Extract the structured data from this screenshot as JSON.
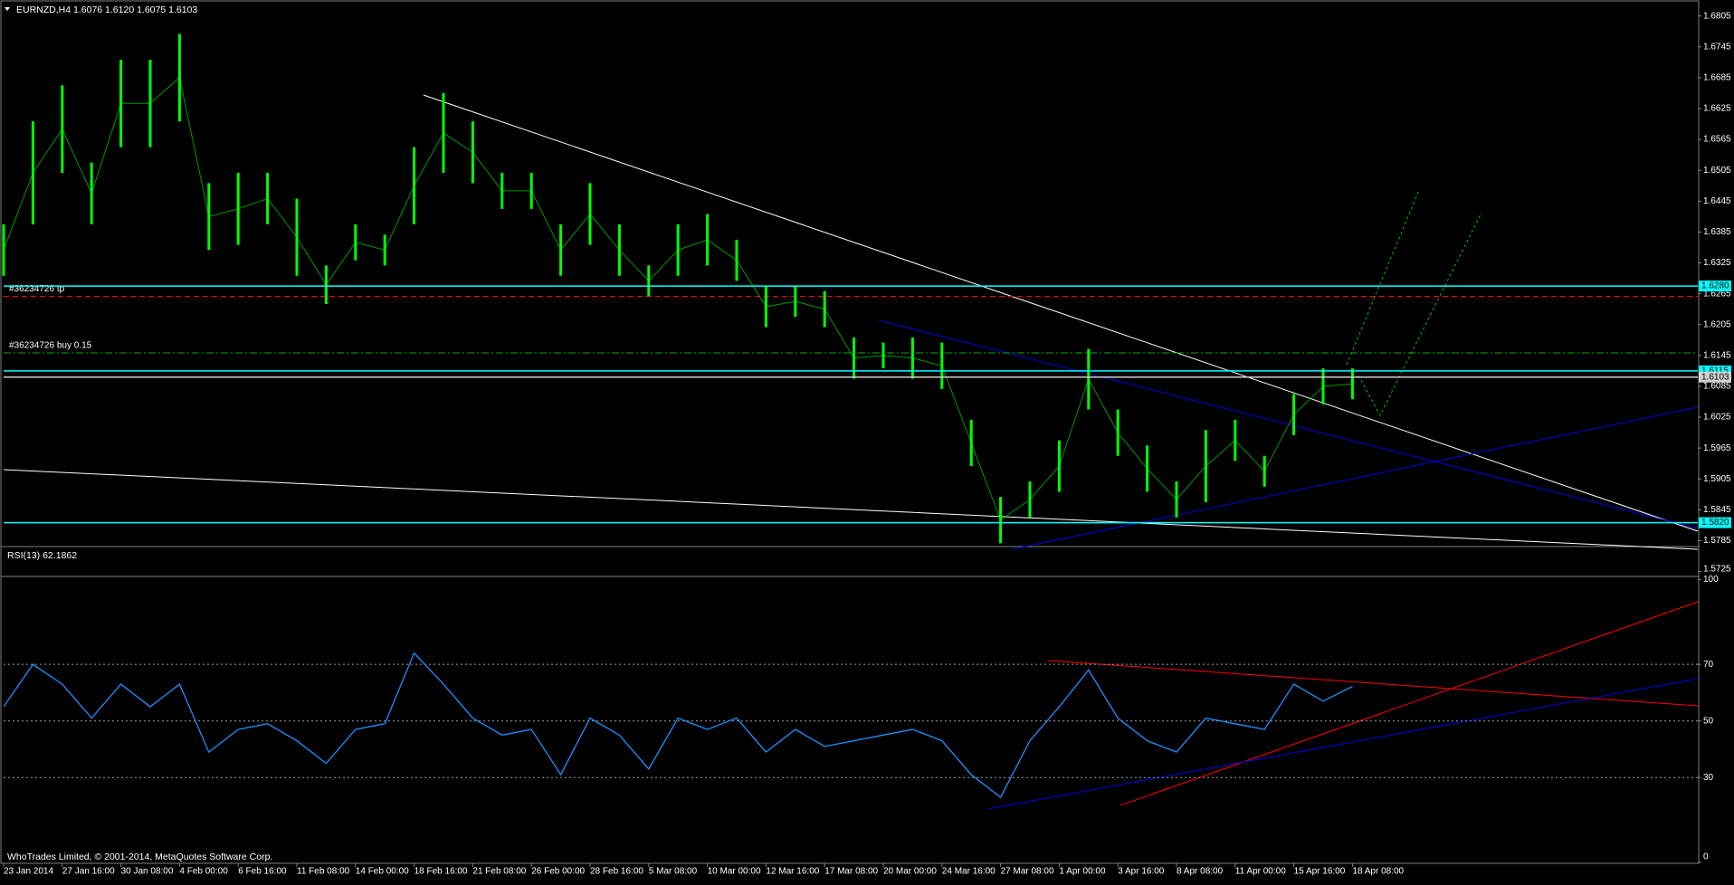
{
  "chart_data": [
    {
      "type": "hl-bar",
      "title": "EURNZD,H4  1.6076 1.6120 1.6075 1.6103",
      "color": "#00ff00",
      "categories": [
        "23 Jan 2014",
        null,
        "27 Jan 16:00",
        null,
        "30 Jan 08:00",
        null,
        "4 Feb 00:00",
        null,
        "6 Feb 16:00",
        null,
        "11 Feb 08:00",
        null,
        "14 Feb 00:00",
        null,
        "18 Feb 16:00",
        null,
        "21 Feb 08:00",
        null,
        "26 Feb 00:00",
        null,
        "28 Feb 16:00",
        null,
        "5 Mar 08:00",
        null,
        "10 Mar 00:00",
        null,
        "12 Mar 16:00",
        null,
        "17 Mar 08:00",
        null,
        "20 Mar 00:00",
        null,
        "24 Mar 16:00",
        null,
        "27 Mar 08:00",
        null,
        "1 Apr 00:00",
        null,
        "3 Apr 16:00",
        null,
        "8 Apr 08:00",
        null,
        "11 Apr 00:00",
        null,
        "15 Apr 16:00",
        null,
        "18 Apr 08:00"
      ],
      "highs": [
        1.64,
        1.66,
        1.667,
        1.652,
        1.672,
        1.672,
        1.677,
        1.648,
        1.65,
        1.65,
        1.645,
        1.632,
        1.64,
        1.638,
        1.655,
        1.6655,
        1.66,
        1.65,
        1.65,
        1.64,
        1.648,
        1.64,
        1.632,
        1.64,
        1.642,
        1.637,
        1.628,
        1.628,
        1.627,
        1.618,
        1.617,
        1.618,
        1.617,
        1.602,
        1.587,
        1.59,
        1.598,
        1.6158,
        1.604,
        1.597,
        1.59,
        1.6,
        1.602,
        1.595,
        1.607,
        1.612,
        1.612
      ],
      "lows": [
        1.63,
        1.64,
        1.65,
        1.64,
        1.655,
        1.655,
        1.66,
        1.635,
        1.636,
        1.64,
        1.63,
        1.6245,
        1.633,
        1.632,
        1.64,
        1.65,
        1.648,
        1.643,
        1.643,
        1.63,
        1.636,
        1.63,
        1.626,
        1.63,
        1.632,
        1.629,
        1.62,
        1.622,
        1.62,
        1.61,
        1.612,
        1.61,
        1.608,
        1.593,
        1.578,
        1.583,
        1.588,
        1.604,
        1.595,
        1.588,
        1.583,
        1.586,
        1.594,
        1.589,
        1.599,
        1.605,
        1.606
      ],
      "ylim": [
        1.5719,
        1.6829
      ],
      "yticks": [
        1.6805,
        1.6745,
        1.6685,
        1.6625,
        1.6565,
        1.6505,
        1.6445,
        1.6385,
        1.6325,
        1.6265,
        1.6205,
        1.6145,
        1.6085,
        1.6025,
        1.5965,
        1.5905,
        1.5845,
        1.5785,
        1.5725
      ],
      "price_lines": [
        {
          "value": 1.628,
          "label": "1.6280",
          "color": "#00ffff"
        },
        {
          "value": 1.6115,
          "label": "1.6115",
          "color": "#00ffff"
        },
        {
          "value": 1.6103,
          "label": "1.6103",
          "color": "#d0d0d0"
        },
        {
          "value": 1.582,
          "label": "1.5820",
          "color": "#00ffff"
        }
      ],
      "orders": [
        {
          "text": "#36234726 tp",
          "value": 1.626,
          "color": "#ff0000",
          "style": "dashed"
        },
        {
          "text": "#36234726 buy 0.15",
          "value": 1.615,
          "color": "#00b000",
          "style": "dash-dot"
        }
      ]
    },
    {
      "type": "line",
      "title": "RSI(13) 62.1862",
      "color": "#1e90ff",
      "values": [
        55,
        70,
        63,
        51,
        63,
        55,
        63,
        39,
        47,
        49,
        43,
        35,
        47,
        49,
        74,
        63,
        51,
        45,
        47,
        31,
        51,
        45,
        33,
        51,
        47,
        51,
        39,
        47,
        41,
        43,
        45,
        47,
        43,
        31,
        23,
        43,
        55,
        68,
        51,
        43,
        39,
        51,
        49,
        47,
        63,
        57,
        62.2
      ],
      "ylim": [
        0,
        111
      ],
      "yticks": [
        100,
        70,
        50,
        30,
        0
      ],
      "levels": [
        70,
        50,
        30
      ],
      "copyright": "WhoTrades Limited, © 2001-2014, MetaQuotes Software Corp."
    }
  ]
}
